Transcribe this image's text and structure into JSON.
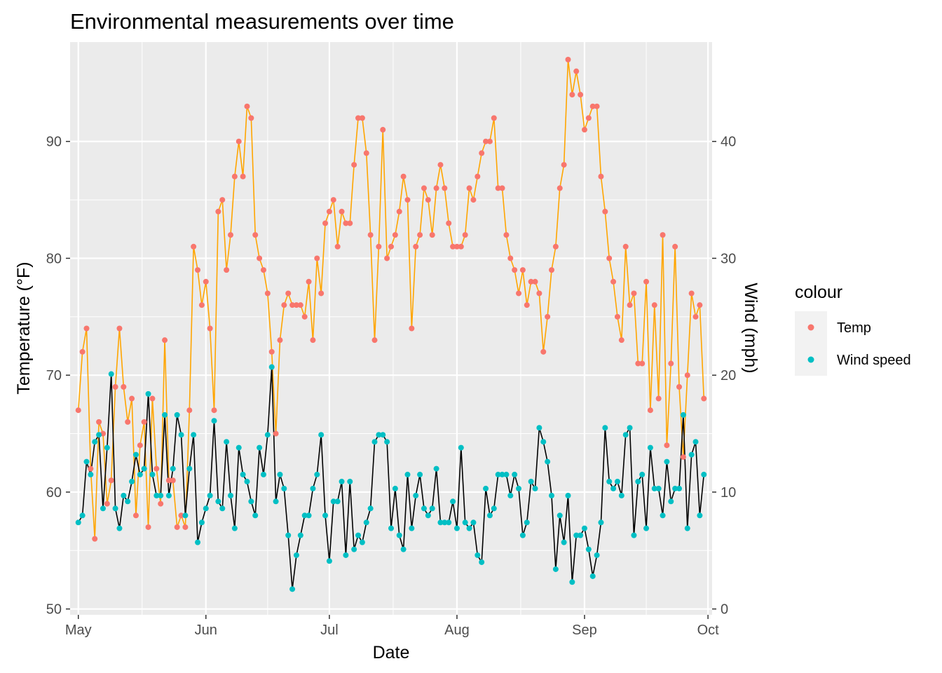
{
  "chart_data": {
    "type": "line",
    "title": "Environmental measurements over time",
    "xlabel": "Date",
    "ylabel": "Temperature (°F)",
    "y2label": "Wind (mph)",
    "x_ticks": [
      "May",
      "Jun",
      "Jul",
      "Aug",
      "Sep",
      "Oct"
    ],
    "y_ticks": [
      50,
      60,
      70,
      80,
      90
    ],
    "y2_ticks": [
      0,
      10,
      20,
      30,
      40
    ],
    "ylim": [
      49.5,
      98.5
    ],
    "y2lim": [
      -0.5,
      48.5
    ],
    "xlim": [
      "2024-04-29",
      "2024-10-02"
    ],
    "grid": true,
    "legend": {
      "title": "colour",
      "position": "right",
      "entries": [
        "Temp",
        "Wind speed"
      ]
    },
    "colors": {
      "panel": "#ebebeb",
      "grid": "#ffffff",
      "temp_point": "#f8766d",
      "temp_line": "#ffa500",
      "wind_point": "#00bfc4",
      "wind_line": "#000000"
    },
    "x": [
      "2024-05-01",
      "2024-05-02",
      "2024-05-03",
      "2024-05-04",
      "2024-05-05",
      "2024-05-06",
      "2024-05-07",
      "2024-05-08",
      "2024-05-09",
      "2024-05-10",
      "2024-05-11",
      "2024-05-12",
      "2024-05-13",
      "2024-05-14",
      "2024-05-15",
      "2024-05-16",
      "2024-05-17",
      "2024-05-18",
      "2024-05-19",
      "2024-05-20",
      "2024-05-21",
      "2024-05-22",
      "2024-05-23",
      "2024-05-24",
      "2024-05-25",
      "2024-05-26",
      "2024-05-27",
      "2024-05-28",
      "2024-05-29",
      "2024-05-30",
      "2024-05-31",
      "2024-06-01",
      "2024-06-02",
      "2024-06-03",
      "2024-06-04",
      "2024-06-05",
      "2024-06-06",
      "2024-06-07",
      "2024-06-08",
      "2024-06-09",
      "2024-06-10",
      "2024-06-11",
      "2024-06-12",
      "2024-06-13",
      "2024-06-14",
      "2024-06-15",
      "2024-06-16",
      "2024-06-17",
      "2024-06-18",
      "2024-06-19",
      "2024-06-20",
      "2024-06-21",
      "2024-06-22",
      "2024-06-23",
      "2024-06-24",
      "2024-06-25",
      "2024-06-26",
      "2024-06-27",
      "2024-06-28",
      "2024-06-29",
      "2024-06-30",
      "2024-07-01",
      "2024-07-02",
      "2024-07-03",
      "2024-07-04",
      "2024-07-05",
      "2024-07-06",
      "2024-07-07",
      "2024-07-08",
      "2024-07-09",
      "2024-07-10",
      "2024-07-11",
      "2024-07-12",
      "2024-07-13",
      "2024-07-14",
      "2024-07-15",
      "2024-07-16",
      "2024-07-17",
      "2024-07-18",
      "2024-07-19",
      "2024-07-20",
      "2024-07-21",
      "2024-07-22",
      "2024-07-23",
      "2024-07-24",
      "2024-07-25",
      "2024-07-26",
      "2024-07-27",
      "2024-07-28",
      "2024-07-29",
      "2024-07-30",
      "2024-07-31",
      "2024-08-01",
      "2024-08-02",
      "2024-08-03",
      "2024-08-04",
      "2024-08-05",
      "2024-08-06",
      "2024-08-07",
      "2024-08-08",
      "2024-08-09",
      "2024-08-10",
      "2024-08-11",
      "2024-08-12",
      "2024-08-13",
      "2024-08-14",
      "2024-08-15",
      "2024-08-16",
      "2024-08-17",
      "2024-08-18",
      "2024-08-19",
      "2024-08-20",
      "2024-08-21",
      "2024-08-22",
      "2024-08-23",
      "2024-08-24",
      "2024-08-25",
      "2024-08-26",
      "2024-08-27",
      "2024-08-28",
      "2024-08-29",
      "2024-08-30",
      "2024-08-31",
      "2024-09-01",
      "2024-09-02",
      "2024-09-03",
      "2024-09-04",
      "2024-09-05",
      "2024-09-06",
      "2024-09-07",
      "2024-09-08",
      "2024-09-09",
      "2024-09-10",
      "2024-09-11",
      "2024-09-12",
      "2024-09-13",
      "2024-09-14",
      "2024-09-15",
      "2024-09-16",
      "2024-09-17",
      "2024-09-18",
      "2024-09-19",
      "2024-09-20",
      "2024-09-21",
      "2024-09-22",
      "2024-09-23",
      "2024-09-24",
      "2024-09-25",
      "2024-09-26",
      "2024-09-27",
      "2024-09-28",
      "2024-09-29",
      "2024-09-30"
    ],
    "series": [
      {
        "name": "Temp",
        "axis": "left",
        "values": [
          67,
          72,
          74,
          62,
          56,
          66,
          65,
          59,
          61,
          69,
          74,
          69,
          66,
          68,
          58,
          64,
          66,
          57,
          68,
          62,
          59,
          73,
          61,
          61,
          57,
          58,
          57,
          67,
          81,
          79,
          76,
          78,
          74,
          67,
          84,
          85,
          79,
          82,
          87,
          90,
          87,
          93,
          92,
          82,
          80,
          79,
          77,
          72,
          65,
          73,
          76,
          77,
          76,
          76,
          76,
          75,
          78,
          73,
          80,
          77,
          83,
          84,
          85,
          81,
          84,
          83,
          83,
          88,
          92,
          92,
          89,
          82,
          73,
          81,
          91,
          80,
          81,
          82,
          84,
          87,
          85,
          74,
          81,
          82,
          86,
          85,
          82,
          86,
          88,
          86,
          83,
          81,
          81,
          81,
          82,
          86,
          85,
          87,
          89,
          90,
          90,
          92,
          86,
          86,
          82,
          80,
          79,
          77,
          79,
          76,
          78,
          78,
          77,
          72,
          75,
          79,
          81,
          86,
          88,
          97,
          94,
          96,
          94,
          91,
          92,
          93,
          93,
          87,
          84,
          80,
          78,
          75,
          73,
          81,
          76,
          77,
          71,
          71,
          78,
          67,
          76,
          68,
          82,
          64,
          71,
          81,
          69,
          63,
          70,
          77,
          75,
          76,
          68
        ]
      },
      {
        "name": "Wind speed",
        "axis": "right",
        "values": [
          7.4,
          8.0,
          12.6,
          11.5,
          14.3,
          14.9,
          8.6,
          13.8,
          20.1,
          8.6,
          6.9,
          9.7,
          9.2,
          10.9,
          13.2,
          11.5,
          12.0,
          18.4,
          11.5,
          9.7,
          9.7,
          16.6,
          9.7,
          12.0,
          16.6,
          14.9,
          8.0,
          12.0,
          14.9,
          5.7,
          7.4,
          8.6,
          9.7,
          16.1,
          9.2,
          8.6,
          14.3,
          9.7,
          6.9,
          13.8,
          11.5,
          10.9,
          9.2,
          8.0,
          13.8,
          11.5,
          14.9,
          20.7,
          9.2,
          11.5,
          10.3,
          6.3,
          1.7,
          4.6,
          6.3,
          8.0,
          8.0,
          10.3,
          11.5,
          14.9,
          8.0,
          4.1,
          9.2,
          9.2,
          10.9,
          4.6,
          10.9,
          5.1,
          6.3,
          5.7,
          7.4,
          8.6,
          14.3,
          14.9,
          14.9,
          14.3,
          6.9,
          10.3,
          6.3,
          5.1,
          11.5,
          6.9,
          9.7,
          11.5,
          8.6,
          8.0,
          8.6,
          12.0,
          7.4,
          7.4,
          7.4,
          9.2,
          6.9,
          13.8,
          7.4,
          6.9,
          7.4,
          4.6,
          4.0,
          10.3,
          8.0,
          8.6,
          11.5,
          11.5,
          11.5,
          9.7,
          11.5,
          10.3,
          6.3,
          7.4,
          10.9,
          10.3,
          15.5,
          14.3,
          12.6,
          9.7,
          3.4,
          8.0,
          5.7,
          9.7,
          2.3,
          6.3,
          6.3,
          6.9,
          5.1,
          2.8,
          4.6,
          7.4,
          15.5,
          10.9,
          10.3,
          10.9,
          9.7,
          14.9,
          15.5,
          6.3,
          10.9,
          11.5,
          6.9,
          13.8,
          10.3,
          10.3,
          8.0,
          12.6,
          9.2,
          10.3,
          10.3,
          16.6,
          6.9,
          13.2,
          14.3,
          8.0,
          11.5
        ]
      }
    ]
  }
}
